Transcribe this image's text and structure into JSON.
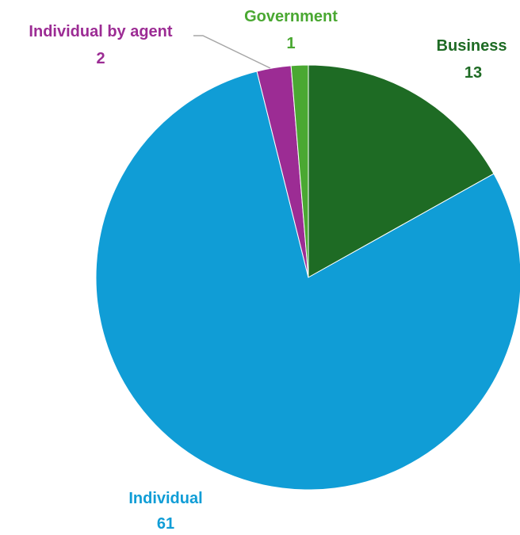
{
  "chart_data": {
    "type": "pie",
    "start_angle_deg": 0,
    "direction": "clockwise",
    "slices": [
      {
        "label": "Business",
        "value": 13,
        "color": "#1e6b24"
      },
      {
        "label": "Individual",
        "value": 61,
        "color": "#109dd6"
      },
      {
        "label": "Individual by agent",
        "value": 2,
        "color": "#9c2c94"
      },
      {
        "label": "Government",
        "value": 1,
        "color": "#4aa832"
      }
    ]
  }
}
